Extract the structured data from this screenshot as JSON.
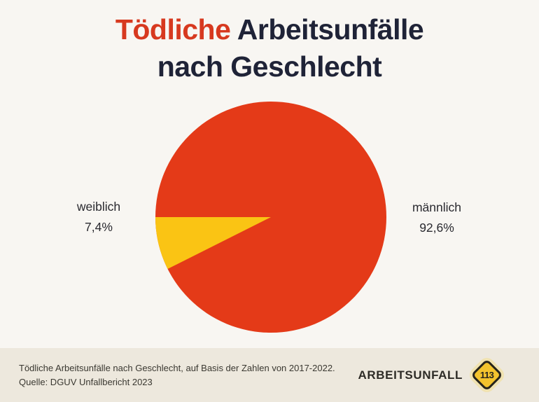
{
  "title": {
    "highlight": "Tödliche",
    "rest": " Arbeitsunfälle",
    "line2": "nach Geschlecht"
  },
  "chart_data": {
    "type": "pie",
    "title": "Tödliche Arbeitsunfälle nach Geschlecht",
    "slices": [
      {
        "label": "männlich",
        "value": 92.6,
        "display": "92,6%",
        "color": "#E43A18"
      },
      {
        "label": "weiblich",
        "value": 7.4,
        "display": "7,4%",
        "color": "#FAC414"
      }
    ],
    "start_angle_deg": 180,
    "minor_slice_sweep": "downward-from-left-horizontal",
    "legend_position": "sides",
    "grid": false
  },
  "footer": {
    "caption_line1": "Tödliche Arbeitsunfälle nach Geschlecht, auf Basis der Zahlen von 2017-2022.",
    "caption_line2": "Quelle: DGUV Unfallbericht 2023",
    "brand": "ARBEITSUNFALL",
    "badge": "113"
  },
  "colors": {
    "background": "#F8F6F2",
    "footer_background": "#EDE8DD",
    "title_accent": "#D7391F",
    "title_dark": "#1F2337",
    "badge_fill": "#F3C32E",
    "badge_border": "#26241C"
  }
}
